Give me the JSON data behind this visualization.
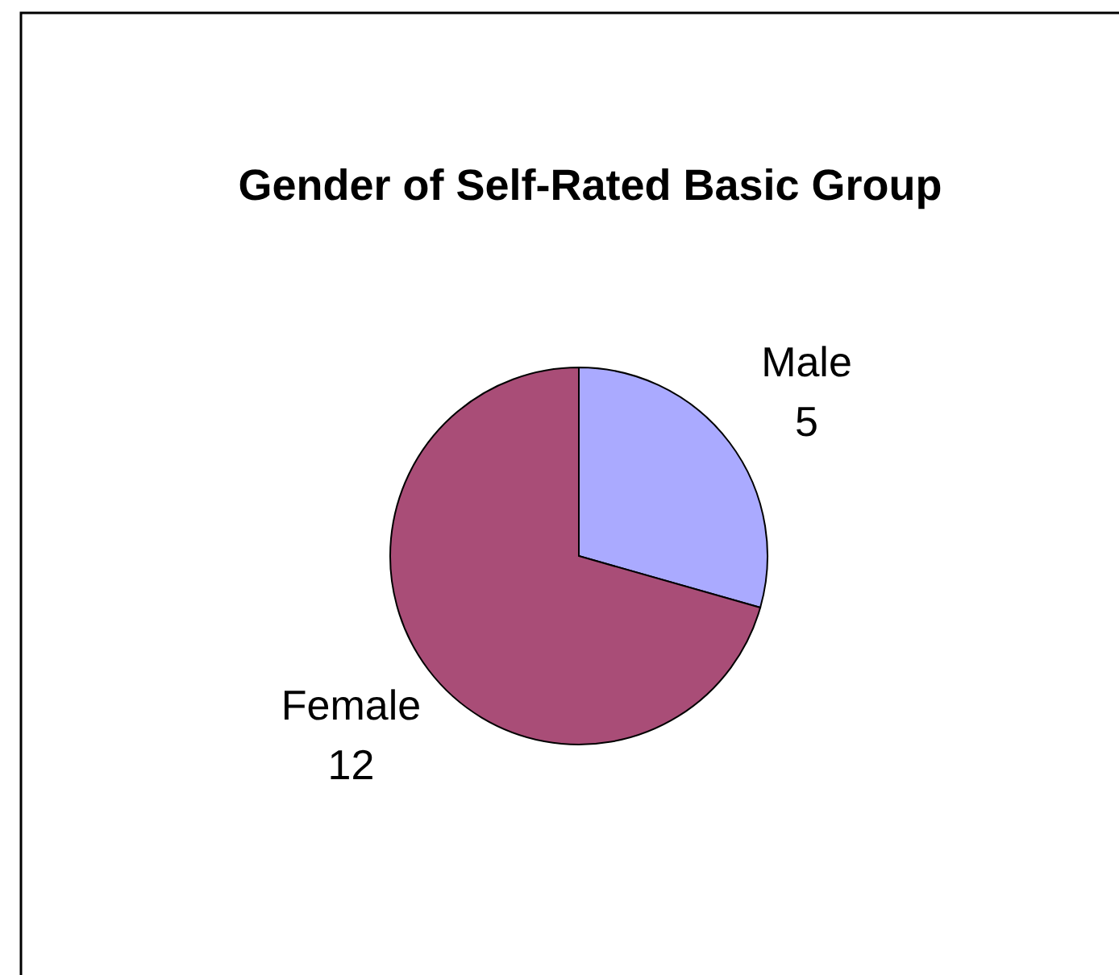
{
  "chart_data": {
    "type": "pie",
    "title": "Gender of Self-Rated Basic Group",
    "categories": [
      "Male",
      "Female"
    ],
    "values": [
      5,
      12
    ],
    "colors": [
      "#aaaaff",
      "#a94d77"
    ],
    "data_labels": true
  }
}
